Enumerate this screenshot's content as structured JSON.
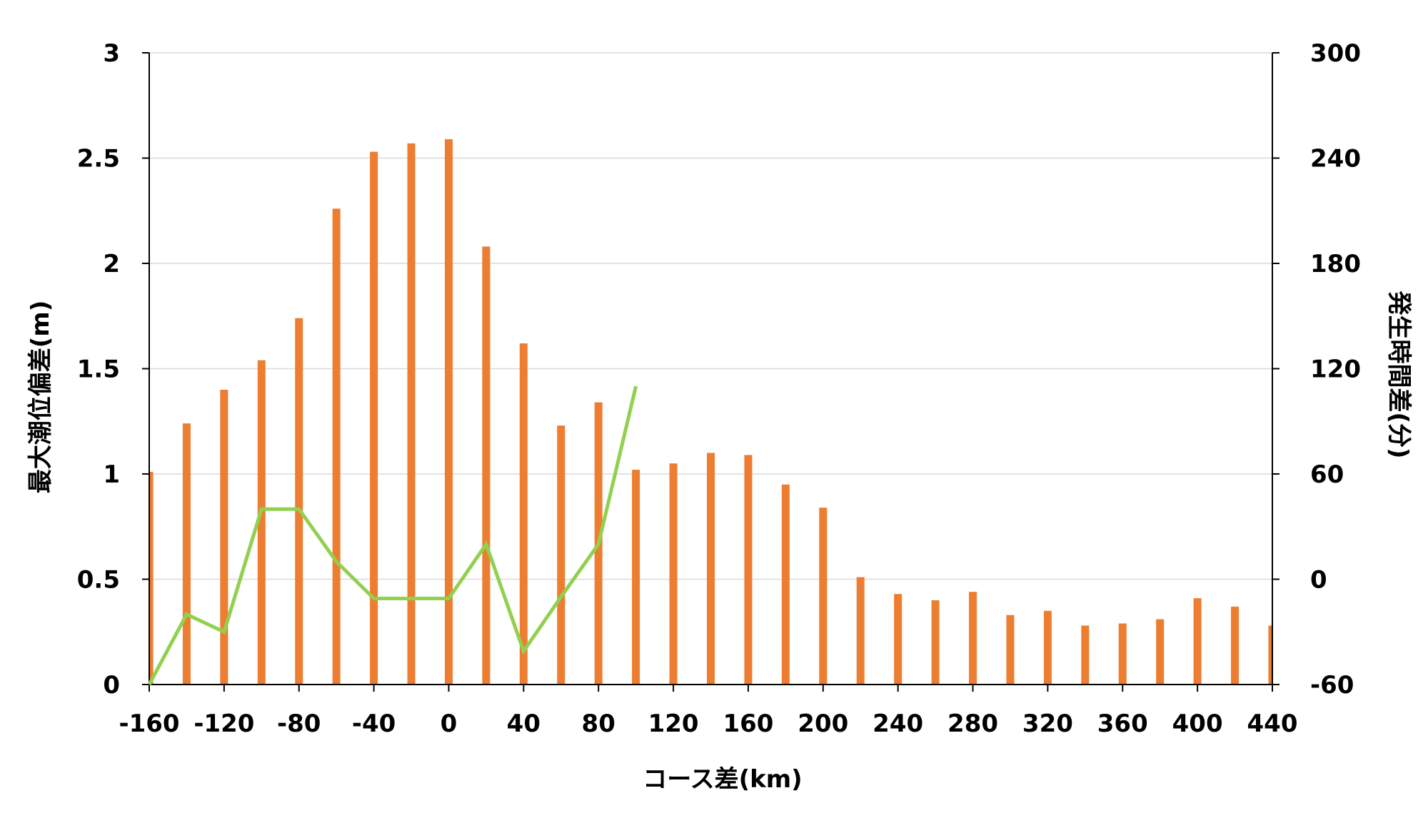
{
  "chart_data": {
    "type": "bar+line",
    "xlabel": "コース差(km)",
    "ylabel_left": "最大潮位偏差(m)",
    "ylabel_right": "発生時間差(分)",
    "ylim_left": [
      0,
      3
    ],
    "ylim_right": [
      -60,
      300
    ],
    "xlim": [
      -160,
      440
    ],
    "x_ticks": [
      "-160",
      "-120",
      "-80",
      "-40",
      "0",
      "40",
      "80",
      "120",
      "160",
      "200",
      "240",
      "280",
      "320",
      "360",
      "400",
      "440"
    ],
    "y_ticks_left": [
      "0",
      "0.5",
      "1",
      "1.5",
      "2",
      "2.5",
      "3"
    ],
    "y_ticks_right": [
      "-60",
      "0",
      "60",
      "120",
      "180",
      "240",
      "300"
    ],
    "grid": true,
    "colors": {
      "bar": "#ED7D31",
      "line": "#92D050",
      "grid": "#D9D9D9",
      "axis": "#000000"
    },
    "bar_series": {
      "axis": "left",
      "x": [
        -160,
        -140,
        -120,
        -100,
        -80,
        -60,
        -40,
        -20,
        0,
        20,
        40,
        60,
        80,
        100,
        120,
        140,
        160,
        180,
        200,
        220,
        240,
        260,
        280,
        300,
        320,
        340,
        360,
        380,
        400,
        420,
        440
      ],
      "values": [
        1.01,
        1.24,
        1.4,
        1.54,
        1.74,
        2.26,
        2.53,
        2.57,
        2.59,
        2.08,
        1.62,
        1.23,
        1.34,
        1.02,
        1.05,
        1.1,
        1.09,
        0.95,
        0.84,
        0.51,
        0.43,
        0.4,
        0.44,
        0.33,
        0.35,
        0.28,
        0.29,
        0.31,
        0.41,
        0.37,
        0.28
      ]
    },
    "line_series": {
      "axis": "right",
      "x": [
        -160,
        -140,
        -120,
        -100,
        -80,
        -60,
        -40,
        -20,
        0,
        20,
        40,
        60,
        80,
        100
      ],
      "values": [
        -62,
        -20,
        -30,
        40,
        40,
        10,
        -11,
        -11,
        -11,
        20,
        -41,
        -10,
        20,
        110
      ]
    }
  }
}
